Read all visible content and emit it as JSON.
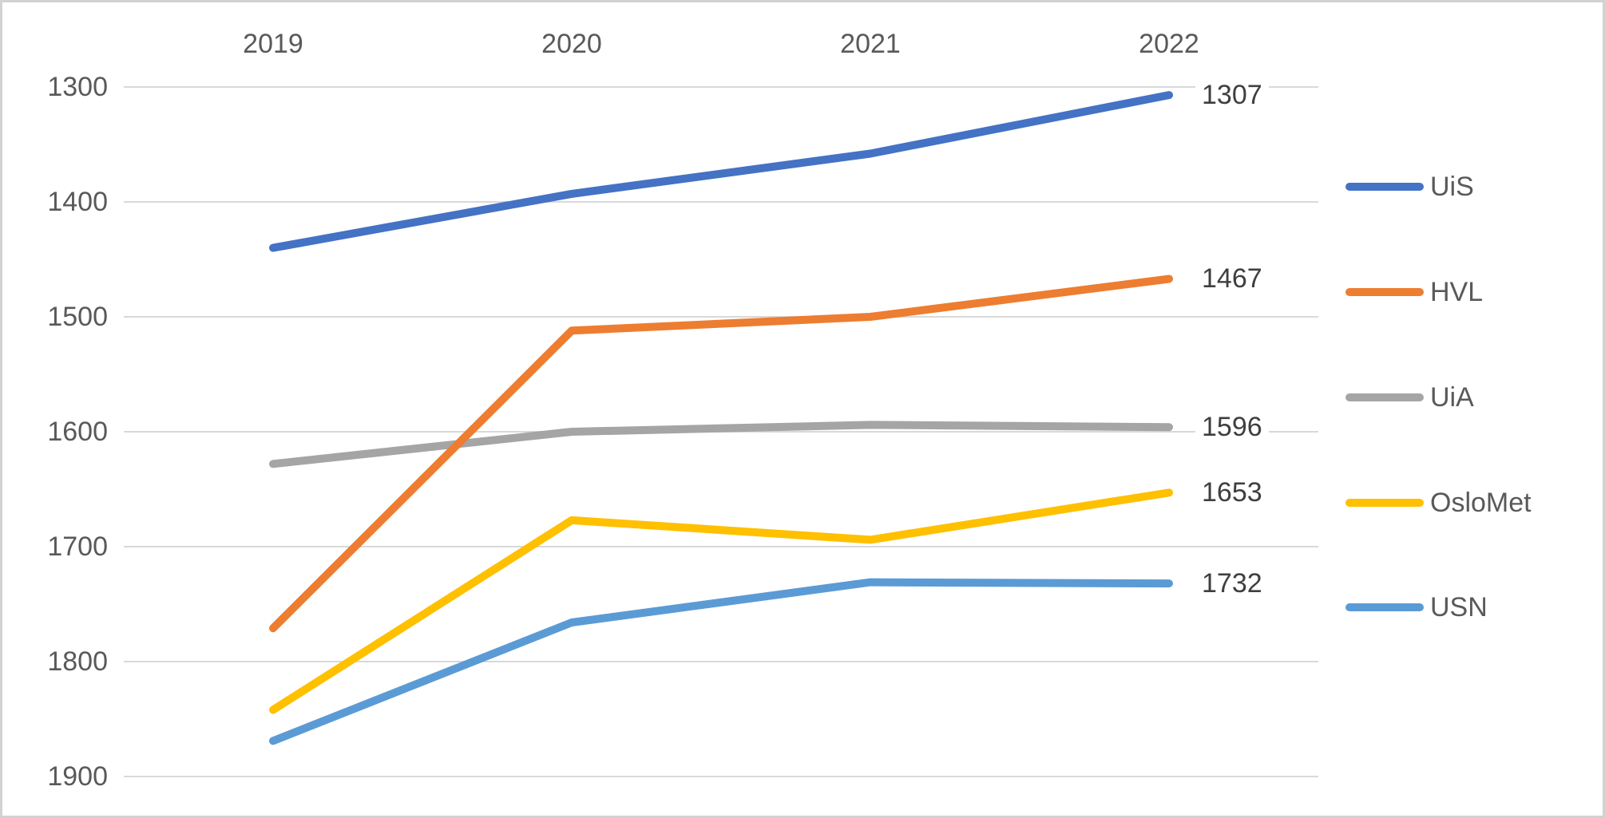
{
  "chart_data": {
    "type": "line",
    "title": "",
    "categories": [
      "2019",
      "2020",
      "2021",
      "2022"
    ],
    "series": [
      {
        "name": "UiS",
        "color": "#4472C4",
        "values": [
          1440,
          1393,
          1358,
          1307
        ],
        "end_label": "1307"
      },
      {
        "name": "HVL",
        "color": "#ED7D31",
        "values": [
          1771,
          1512,
          1500,
          1467
        ],
        "end_label": "1467"
      },
      {
        "name": "UiA",
        "color": "#A5A5A5",
        "values": [
          1628,
          1600,
          1594,
          1596
        ],
        "end_label": "1596"
      },
      {
        "name": "OsloMet",
        "color": "#FFC000",
        "values": [
          1842,
          1677,
          1694,
          1653
        ],
        "end_label": "1653"
      },
      {
        "name": "USN",
        "color": "#5B9BD5",
        "values": [
          1869,
          1766,
          1731,
          1732
        ],
        "end_label": "1732"
      }
    ],
    "y_axis": {
      "min": 1300,
      "max": 1900,
      "step": 100,
      "reversed": true,
      "tick_labels": [
        "1300",
        "1400",
        "1500",
        "1600",
        "1700",
        "1800",
        "1900"
      ]
    },
    "x_axis_position": "top",
    "grid": true,
    "legend": {
      "position": "right",
      "entries": [
        "UiS",
        "HVL",
        "UiA",
        "OsloMet",
        "USN"
      ]
    }
  },
  "colors": {
    "gridline": "#D9D9D9",
    "axis_text": "#595959",
    "data_label_text": "#3F3F3F",
    "frame_border": "#D2D2D2",
    "background": "#FFFFFF"
  }
}
